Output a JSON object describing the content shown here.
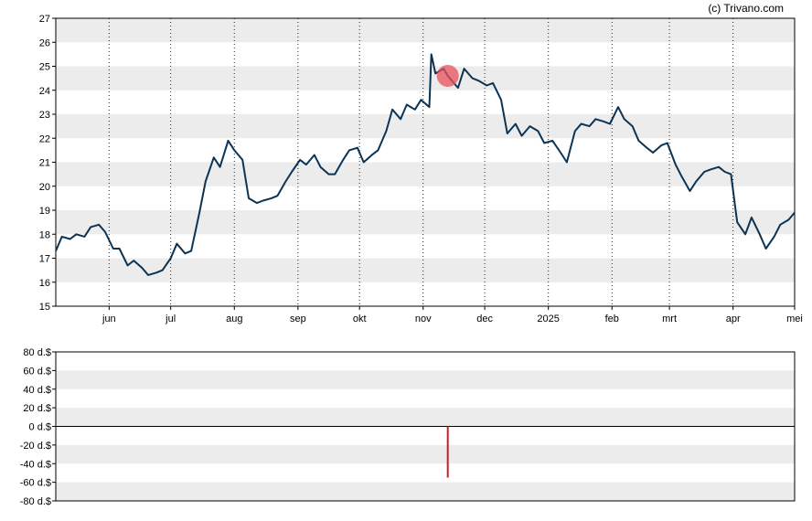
{
  "credit": "(c) Trivano.com",
  "chart_data": [
    {
      "type": "line",
      "ylim": [
        15,
        27
      ],
      "y_ticks": [
        15,
        16,
        17,
        18,
        19,
        20,
        21,
        22,
        23,
        24,
        25,
        26,
        27
      ],
      "x_range": [
        "2024-05-06",
        "2025-05-01"
      ],
      "x_ticks": [
        {
          "date": "2024-06-01",
          "label": "jun"
        },
        {
          "date": "2024-07-01",
          "label": "jul"
        },
        {
          "date": "2024-08-01",
          "label": "aug"
        },
        {
          "date": "2024-09-01",
          "label": "sep"
        },
        {
          "date": "2024-10-01",
          "label": "okt"
        },
        {
          "date": "2024-11-01",
          "label": "nov"
        },
        {
          "date": "2024-12-01",
          "label": "dec"
        },
        {
          "date": "2025-01-01",
          "label": "2025"
        },
        {
          "date": "2025-02-01",
          "label": "feb"
        },
        {
          "date": "2025-03-01",
          "label": "mrt"
        },
        {
          "date": "2025-04-01",
          "label": "apr"
        },
        {
          "date": "2025-05-01",
          "label": "mei"
        }
      ],
      "grid": true,
      "line_color": "#0c3354",
      "marker_color": "#e8505b",
      "marker": {
        "date": "2024-11-13",
        "value": 24.6
      },
      "series": [
        {
          "points": [
            [
              "2024-05-06",
              17.3
            ],
            [
              "2024-05-09",
              17.9
            ],
            [
              "2024-05-13",
              17.8
            ],
            [
              "2024-05-16",
              18.0
            ],
            [
              "2024-05-20",
              17.9
            ],
            [
              "2024-05-23",
              18.3
            ],
            [
              "2024-05-27",
              18.4
            ],
            [
              "2024-05-30",
              18.1
            ],
            [
              "2024-06-03",
              17.4
            ],
            [
              "2024-06-06",
              17.4
            ],
            [
              "2024-06-10",
              16.7
            ],
            [
              "2024-06-13",
              16.9
            ],
            [
              "2024-06-17",
              16.6
            ],
            [
              "2024-06-20",
              16.3
            ],
            [
              "2024-06-24",
              16.4
            ],
            [
              "2024-06-27",
              16.5
            ],
            [
              "2024-07-01",
              17.0
            ],
            [
              "2024-07-04",
              17.6
            ],
            [
              "2024-07-08",
              17.2
            ],
            [
              "2024-07-11",
              17.3
            ],
            [
              "2024-07-15",
              18.9
            ],
            [
              "2024-07-18",
              20.2
            ],
            [
              "2024-07-22",
              21.2
            ],
            [
              "2024-07-25",
              20.8
            ],
            [
              "2024-07-29",
              21.9
            ],
            [
              "2024-08-01",
              21.5
            ],
            [
              "2024-08-05",
              21.1
            ],
            [
              "2024-08-08",
              19.5
            ],
            [
              "2024-08-12",
              19.3
            ],
            [
              "2024-08-15",
              19.4
            ],
            [
              "2024-08-19",
              19.5
            ],
            [
              "2024-08-22",
              19.6
            ],
            [
              "2024-08-26",
              20.2
            ],
            [
              "2024-08-29",
              20.6
            ],
            [
              "2024-09-02",
              21.1
            ],
            [
              "2024-09-05",
              20.9
            ],
            [
              "2024-09-09",
              21.3
            ],
            [
              "2024-09-12",
              20.8
            ],
            [
              "2024-09-16",
              20.5
            ],
            [
              "2024-09-19",
              20.5
            ],
            [
              "2024-09-23",
              21.1
            ],
            [
              "2024-09-26",
              21.5
            ],
            [
              "2024-09-30",
              21.6
            ],
            [
              "2024-10-03",
              21.0
            ],
            [
              "2024-10-07",
              21.3
            ],
            [
              "2024-10-10",
              21.5
            ],
            [
              "2024-10-14",
              22.3
            ],
            [
              "2024-10-17",
              23.2
            ],
            [
              "2024-10-21",
              22.8
            ],
            [
              "2024-10-24",
              23.4
            ],
            [
              "2024-10-28",
              23.2
            ],
            [
              "2024-10-31",
              23.6
            ],
            [
              "2024-11-04",
              23.3
            ],
            [
              "2024-11-05",
              25.5
            ],
            [
              "2024-11-07",
              24.7
            ],
            [
              "2024-11-11",
              24.9
            ],
            [
              "2024-11-13",
              24.6
            ],
            [
              "2024-11-18",
              24.1
            ],
            [
              "2024-11-21",
              24.9
            ],
            [
              "2024-11-25",
              24.5
            ],
            [
              "2024-11-28",
              24.4
            ],
            [
              "2024-12-02",
              24.2
            ],
            [
              "2024-12-05",
              24.3
            ],
            [
              "2024-12-09",
              23.6
            ],
            [
              "2024-12-12",
              22.2
            ],
            [
              "2024-12-16",
              22.6
            ],
            [
              "2024-12-19",
              22.1
            ],
            [
              "2024-12-23",
              22.5
            ],
            [
              "2024-12-27",
              22.3
            ],
            [
              "2024-12-30",
              21.8
            ],
            [
              "2025-01-03",
              21.9
            ],
            [
              "2025-01-07",
              21.4
            ],
            [
              "2025-01-10",
              21.0
            ],
            [
              "2025-01-14",
              22.3
            ],
            [
              "2025-01-17",
              22.6
            ],
            [
              "2025-01-21",
              22.5
            ],
            [
              "2025-01-24",
              22.8
            ],
            [
              "2025-01-28",
              22.7
            ],
            [
              "2025-01-31",
              22.6
            ],
            [
              "2025-02-04",
              23.3
            ],
            [
              "2025-02-07",
              22.8
            ],
            [
              "2025-02-11",
              22.5
            ],
            [
              "2025-02-14",
              21.9
            ],
            [
              "2025-02-18",
              21.6
            ],
            [
              "2025-02-21",
              21.4
            ],
            [
              "2025-02-25",
              21.7
            ],
            [
              "2025-02-28",
              21.8
            ],
            [
              "2025-03-04",
              20.9
            ],
            [
              "2025-03-07",
              20.4
            ],
            [
              "2025-03-11",
              19.8
            ],
            [
              "2025-03-14",
              20.2
            ],
            [
              "2025-03-18",
              20.6
            ],
            [
              "2025-03-21",
              20.7
            ],
            [
              "2025-03-25",
              20.8
            ],
            [
              "2025-03-28",
              20.6
            ],
            [
              "2025-03-31",
              20.5
            ],
            [
              "2025-04-03",
              18.5
            ],
            [
              "2025-04-07",
              18.0
            ],
            [
              "2025-04-10",
              18.7
            ],
            [
              "2025-04-14",
              18.0
            ],
            [
              "2025-04-17",
              17.4
            ],
            [
              "2025-04-21",
              17.9
            ],
            [
              "2025-04-24",
              18.4
            ],
            [
              "2025-04-28",
              18.6
            ],
            [
              "2025-05-01",
              18.9
            ]
          ]
        }
      ]
    },
    {
      "type": "bar",
      "ylim": [
        -80,
        80
      ],
      "y_ticks": [
        80,
        60,
        40,
        20,
        0,
        -20,
        -40,
        -60,
        -80
      ],
      "y_tick_labels": [
        "80 d.$",
        "60 d.$",
        "40 d.$",
        "20 d.$",
        "0 d.$",
        "-20 d.$",
        "-40 d.$",
        "-60 d.$",
        "-80 d.$"
      ],
      "grid": true,
      "bar_color": "#cc1a2a",
      "bars": [
        {
          "date": "2024-11-13",
          "value": -55
        }
      ]
    }
  ]
}
